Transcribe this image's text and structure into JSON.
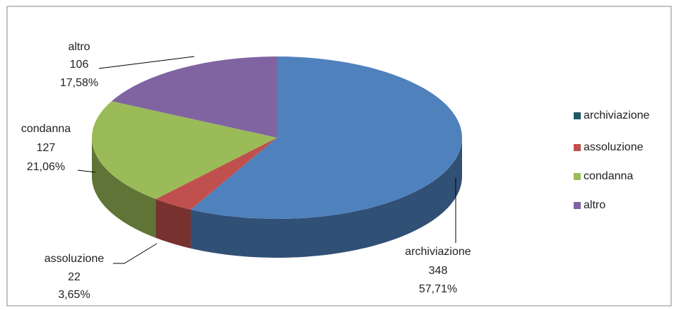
{
  "chart_data": {
    "type": "pie3d",
    "categories": [
      "archiviazione",
      "assoluzione",
      "condanna",
      "altro"
    ],
    "values": [
      348,
      22,
      127,
      106
    ],
    "percent_labels": [
      "57,71%",
      "3,65%",
      "21,06%",
      "17,58%"
    ],
    "colors": [
      "#4f81bd",
      "#c0504d",
      "#9bbb59",
      "#8064a2"
    ],
    "legend_colors": [
      "#215968",
      "#c0504d",
      "#9bbb59",
      "#8064a2"
    ],
    "legend": "right"
  }
}
